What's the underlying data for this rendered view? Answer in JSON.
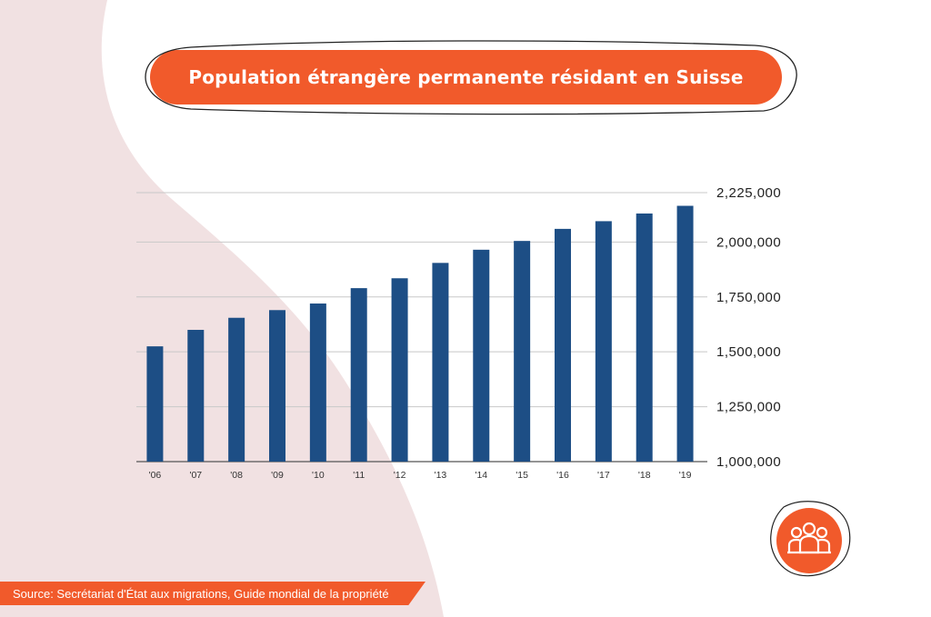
{
  "title": "Population étrangère permanente résidant en Suisse",
  "source": "Source: Secrétariat d'État aux migrations, Guide mondial de la propriété",
  "colors": {
    "accent": "#f15a2b",
    "bar": "#1d4e85",
    "background_shape": "#f1e1e2",
    "grid": "#c8c8c8"
  },
  "badge_icon": "people-group-icon",
  "chart_data": {
    "type": "bar",
    "categories": [
      "'06",
      "'07",
      "'08",
      "'09",
      "'10",
      "'11",
      "'12",
      "'13",
      "'14",
      "'15",
      "'16",
      "'17",
      "'18",
      "'19"
    ],
    "values": [
      1525000,
      1600000,
      1655000,
      1690000,
      1720000,
      1790000,
      1835000,
      1905000,
      1965000,
      2005000,
      2060000,
      2095000,
      2130000,
      2165000
    ],
    "y_ticks": [
      "2,225,000",
      "2,000,000",
      "1,750,000",
      "1,500,000",
      "1,250,000",
      "1,000,000"
    ],
    "ylim": [
      1000000,
      2225000
    ],
    "y_axis_side": "right",
    "grid": true,
    "legend": "none"
  }
}
